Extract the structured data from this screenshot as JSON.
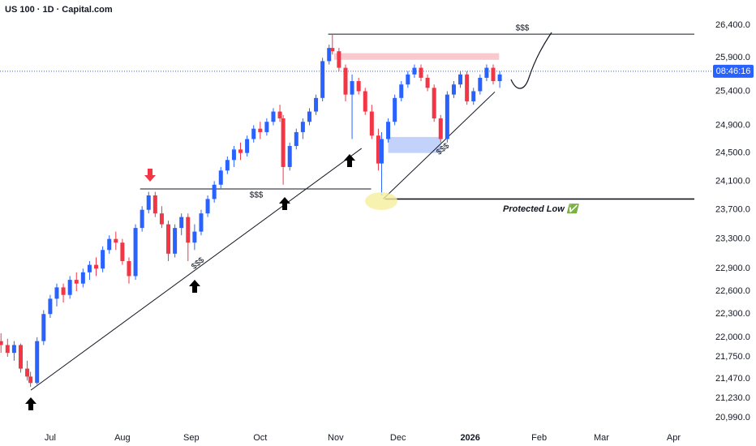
{
  "chart_data": {
    "type": "candlestick",
    "title": "US 100 · 1D · Capital.com",
    "log_scale": true,
    "grid": false,
    "up_color": "#2962ff",
    "down_color": "#f23645",
    "xlim": [
      -15.3,
      196.8
    ],
    "ylim": [
      20842,
      26790
    ],
    "xticks": [
      {
        "value": 0,
        "label": "Jul"
      },
      {
        "value": 22,
        "label": "Aug"
      },
      {
        "value": 43,
        "label": "Sep"
      },
      {
        "value": 64,
        "label": "Oct"
      },
      {
        "value": 87,
        "label": "Nov"
      },
      {
        "value": 106,
        "label": "Dec"
      },
      {
        "value": 128,
        "label": "2026"
      },
      {
        "value": 149,
        "label": "Feb"
      },
      {
        "value": 168,
        "label": "Mar"
      },
      {
        "value": 190,
        "label": "Apr"
      }
    ],
    "yticks": [
      {
        "value": 26400,
        "label": "26,400.0"
      },
      {
        "value": 25900,
        "label": "25,900.0"
      },
      {
        "value": 25400,
        "label": "25,400.0"
      },
      {
        "value": 24900,
        "label": "24,900.0"
      },
      {
        "value": 24500,
        "label": "24,500.0"
      },
      {
        "value": 24100,
        "label": "24,100.0"
      },
      {
        "value": 23700,
        "label": "23,700.0"
      },
      {
        "value": 23300,
        "label": "23,300.0"
      },
      {
        "value": 22900,
        "label": "22,900.0"
      },
      {
        "value": 22600,
        "label": "22,600.0"
      },
      {
        "value": 22300,
        "label": "22,300.0"
      },
      {
        "value": 22000,
        "label": "22,000.0"
      },
      {
        "value": 21750,
        "label": "21,750.0"
      },
      {
        "value": 21470,
        "label": "21,470.0"
      },
      {
        "value": 21230,
        "label": "21,230.0"
      },
      {
        "value": 20990,
        "label": "20,990.0"
      }
    ],
    "x": [
      -15,
      -13,
      -11,
      -9,
      -7,
      -6,
      -4,
      -2,
      0,
      2,
      4,
      6,
      8,
      10,
      12,
      14,
      16,
      18,
      20,
      22,
      24,
      26,
      28,
      30,
      32,
      34,
      36,
      38,
      40,
      42,
      44,
      46,
      48,
      50,
      52,
      54,
      56,
      58,
      60,
      62,
      64,
      66,
      68,
      70,
      71,
      73,
      75,
      77,
      79,
      81,
      83,
      85,
      86,
      88,
      90,
      92,
      94,
      96,
      98,
      100,
      101,
      103,
      105,
      107,
      109,
      111,
      113,
      115,
      117,
      119,
      121,
      123,
      125,
      127,
      129,
      131,
      133,
      135,
      137
    ],
    "open": [
      21950,
      21900,
      21800,
      21900,
      21600,
      21500,
      21420,
      21950,
      22300,
      22500,
      22650,
      22550,
      22750,
      22700,
      22850,
      22950,
      22900,
      23150,
      23300,
      23250,
      23000,
      22800,
      23450,
      23700,
      23900,
      23650,
      23500,
      23100,
      23450,
      23600,
      23250,
      23400,
      23650,
      23850,
      24050,
      24250,
      24400,
      24550,
      24500,
      24700,
      24850,
      24800,
      24950,
      25100,
      25000,
      24300,
      24600,
      24800,
      24950,
      25100,
      25300,
      25850,
      26050,
      26000,
      25750,
      25350,
      25550,
      25400,
      25100,
      24750,
      24350,
      24700,
      24950,
      25300,
      25500,
      25650,
      25750,
      25600,
      25450,
      25000,
      24700,
      25350,
      25500,
      25650,
      25250,
      25400,
      25600,
      25750,
      25550
    ],
    "high": [
      22050,
      21980,
      21950,
      21920,
      21700,
      21560,
      22000,
      22350,
      22550,
      22700,
      22700,
      22800,
      22850,
      22900,
      23000,
      23050,
      23200,
      23350,
      23400,
      23300,
      23050,
      23500,
      23750,
      23950,
      23950,
      23750,
      23550,
      23500,
      23650,
      23650,
      23500,
      23700,
      23900,
      24100,
      24300,
      24450,
      24600,
      24650,
      24750,
      24900,
      24950,
      25000,
      25150,
      25200,
      25050,
      24650,
      24850,
      25000,
      25150,
      25350,
      25900,
      26100,
      26250,
      26050,
      25800,
      25650,
      25600,
      25450,
      25200,
      24850,
      24800,
      25000,
      25350,
      25550,
      25700,
      25800,
      25800,
      25650,
      25500,
      25050,
      25400,
      25550,
      25700,
      25700,
      25450,
      25650,
      25800,
      25800,
      25700
    ],
    "low": [
      21800,
      21750,
      21700,
      21550,
      21450,
      21370,
      21400,
      21900,
      22250,
      22400,
      22450,
      22500,
      22600,
      22650,
      22750,
      22800,
      22850,
      23100,
      23150,
      22950,
      22700,
      22750,
      23400,
      23650,
      23600,
      23450,
      23000,
      23050,
      23350,
      23000,
      23150,
      23350,
      23600,
      23800,
      24000,
      24200,
      24300,
      24400,
      24450,
      24650,
      24700,
      24750,
      24900,
      24950,
      24050,
      24250,
      24550,
      24700,
      24900,
      25050,
      25250,
      25800,
      25950,
      25700,
      25250,
      24700,
      25350,
      25050,
      24700,
      24250,
      23900,
      24650,
      24900,
      25250,
      25450,
      25600,
      25550,
      25400,
      24950,
      24650,
      24650,
      25300,
      25450,
      25200,
      25200,
      25350,
      25550,
      25500,
      25450
    ],
    "close": [
      21900,
      21800,
      21900,
      21600,
      21500,
      21420,
      21950,
      22300,
      22500,
      22650,
      22550,
      22750,
      22700,
      22850,
      22950,
      22900,
      23150,
      23300,
      23250,
      23000,
      22800,
      23450,
      23700,
      23900,
      23650,
      23500,
      23100,
      23450,
      23600,
      23250,
      23400,
      23650,
      23850,
      24050,
      24250,
      24400,
      24550,
      24500,
      24700,
      24850,
      24800,
      24950,
      25100,
      25000,
      24300,
      24600,
      24800,
      24950,
      25100,
      25300,
      25850,
      26050,
      26000,
      25750,
      25350,
      25550,
      25400,
      25100,
      24750,
      24350,
      24700,
      24950,
      25300,
      25500,
      25650,
      25750,
      25600,
      25450,
      25000,
      24700,
      25350,
      25500,
      25650,
      25250,
      25400,
      25600,
      25750,
      25550,
      25650
    ],
    "last_price": 25697,
    "countdown": "08:46:16",
    "hlines": [
      {
        "y": 26260,
        "x": [
          84.7,
          196.3
        ]
      },
      {
        "y": 23990,
        "x": [
          27.4,
          97.8
        ]
      },
      {
        "y": 23850,
        "x": [
          102,
          196.3
        ]
      }
    ],
    "zones": [
      {
        "color": "#f7c3ca",
        "y": [
          25870,
          25970
        ],
        "x": [
          86.5,
          136.8
        ]
      },
      {
        "color": "#bccdfb",
        "y": [
          24500,
          24730
        ],
        "x": [
          103,
          119
        ]
      }
    ],
    "trendlines": [
      {
        "x": [
          -5.9,
          94.9
        ],
        "y": [
          21330,
          24566
        ]
      },
      {
        "x": [
          101.5,
          135.5
        ],
        "y": [
          23850,
          25390
        ]
      }
    ],
    "labels": [
      "$$$",
      "$$$",
      "$$$",
      "$$$",
      "Protected Low ✅"
    ]
  }
}
